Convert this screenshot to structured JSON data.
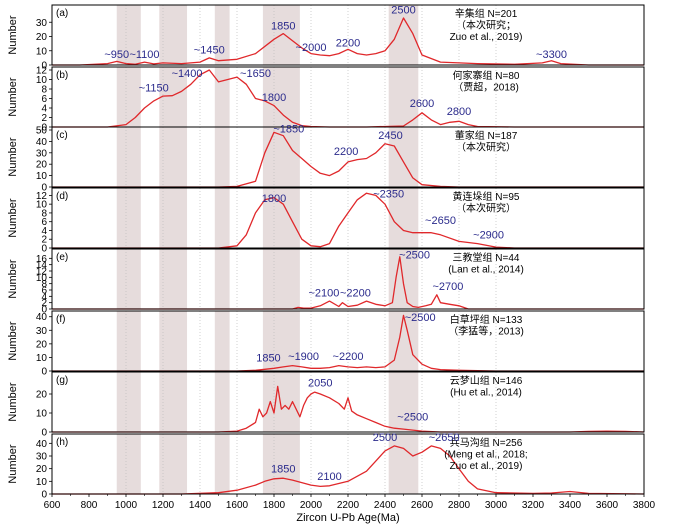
{
  "chart_data": {
    "type": "line",
    "xlabel": "Zircon U-Pb Age(Ma)",
    "ylabel": "Number",
    "xlim": [
      600,
      3800
    ],
    "xticks": [
      600,
      800,
      1000,
      1200,
      1400,
      1600,
      1800,
      2000,
      2200,
      2400,
      2600,
      2800,
      3000,
      3200,
      3400,
      3600,
      3800
    ],
    "colors": {
      "curve": "#e0282b",
      "peak_label": "#2b2b8c",
      "shade": "#e6dcdc",
      "gridline": "#bdbdbd"
    },
    "shaded_bands": [
      [
        950,
        1080
      ],
      [
        1180,
        1330
      ],
      [
        1480,
        1560
      ],
      [
        1740,
        1940
      ],
      [
        2420,
        2580
      ]
    ],
    "dotted_gridlines": [
      1000,
      1200,
      1400,
      1600,
      1800,
      2000,
      2200,
      2400,
      2600,
      2800,
      3000
    ],
    "panels": [
      {
        "tag": "(a)",
        "title_lines": [
          "辛集组 N=201",
          "（本次研究；",
          "Zuo et al., 2019)"
        ],
        "ylim": [
          0,
          40
        ],
        "yticks": [
          0,
          10,
          20,
          30
        ],
        "x": [
          600,
          750,
          900,
          950,
          1000,
          1050,
          1100,
          1150,
          1200,
          1300,
          1400,
          1450,
          1500,
          1600,
          1700,
          1800,
          1850,
          1900,
          1950,
          2000,
          2050,
          2100,
          2150,
          2200,
          2250,
          2300,
          2350,
          2400,
          2450,
          2500,
          2550,
          2600,
          2700,
          2900,
          3100,
          3250,
          3300,
          3350,
          3500,
          3800
        ],
        "y": [
          0,
          0,
          1,
          2.5,
          1,
          0.5,
          2,
          0.8,
          1.5,
          1,
          2,
          5,
          3,
          4,
          8,
          18,
          22,
          17,
          12,
          8,
          7,
          6.5,
          8,
          11,
          8,
          7,
          8,
          10,
          18,
          33,
          22,
          7,
          2,
          1,
          0.5,
          1.5,
          3,
          1,
          0,
          0
        ],
        "peaks": [
          {
            "label": "~950",
            "x": 950,
            "y": 5
          },
          {
            "label": "~1100",
            "x": 1100,
            "y": 5
          },
          {
            "label": "~1450",
            "x": 1450,
            "y": 8
          },
          {
            "label": "1850",
            "x": 1850,
            "y": 25
          },
          {
            "label": "~2000",
            "x": 2000,
            "y": 10
          },
          {
            "label": "2200",
            "x": 2200,
            "y": 13
          },
          {
            "label": "2500",
            "x": 2500,
            "y": 36
          },
          {
            "label": "~3300",
            "x": 3300,
            "y": 5
          }
        ]
      },
      {
        "tag": "(b)",
        "title_lines": [
          "何家寨组 N=80",
          "（贾超，2018)"
        ],
        "ylim": [
          0,
          12
        ],
        "yticks": [
          0,
          2,
          4,
          6,
          8,
          10,
          12
        ],
        "x": [
          600,
          900,
          1000,
          1050,
          1100,
          1150,
          1200,
          1250,
          1300,
          1350,
          1400,
          1450,
          1500,
          1550,
          1600,
          1650,
          1700,
          1750,
          1800,
          1850,
          1900,
          1950,
          2000,
          2100,
          2300,
          2500,
          2550,
          2600,
          2650,
          2700,
          2750,
          2800,
          2850,
          2900,
          3100,
          3800
        ],
        "y": [
          0,
          0,
          0.5,
          2,
          4,
          5.5,
          6.5,
          6.6,
          7.5,
          9,
          11,
          12,
          9.5,
          10,
          10.5,
          9,
          6,
          5.5,
          4.5,
          2.5,
          1,
          0.3,
          0.1,
          0,
          0,
          0.2,
          1.5,
          3,
          1.5,
          0.5,
          1,
          1.2,
          0.5,
          0.1,
          0,
          0
        ],
        "peaks": [
          {
            "label": "~1150",
            "x": 1150,
            "y": 7.5
          },
          {
            "label": "~1400",
            "x": 1330,
            "y": 10.5
          },
          {
            "label": "~1650",
            "x": 1700,
            "y": 10.5
          },
          {
            "label": "1800",
            "x": 1800,
            "y": 5.5
          },
          {
            "label": "2600",
            "x": 2600,
            "y": 4.2
          },
          {
            "label": "2800",
            "x": 2800,
            "y": 2.5
          }
        ]
      },
      {
        "tag": "(c)",
        "title_lines": [
          "董家组 N=187",
          "（本次研究）"
        ],
        "ylim": [
          0,
          50
        ],
        "yticks": [
          0,
          10,
          20,
          30,
          40,
          50
        ],
        "x": [
          600,
          1500,
          1600,
          1700,
          1750,
          1800,
          1850,
          1900,
          1950,
          2000,
          2050,
          2100,
          2150,
          2200,
          2250,
          2300,
          2350,
          2400,
          2450,
          2500,
          2550,
          2600,
          2700,
          2800,
          3000,
          3800
        ],
        "y": [
          0,
          0,
          0.5,
          5,
          30,
          48,
          45,
          32,
          25,
          18,
          12,
          10,
          14,
          22,
          24,
          25,
          30,
          38,
          36,
          22,
          8,
          2,
          0.5,
          0,
          0,
          0
        ],
        "peaks": [
          {
            "label": "~1850",
            "x": 1880,
            "y": 48
          },
          {
            "label": "2200",
            "x": 2190,
            "y": 28
          },
          {
            "label": "2450",
            "x": 2430,
            "y": 42
          }
        ]
      },
      {
        "tag": "(d)",
        "title_lines": [
          "黄连垛组 N=95",
          "（本次研究）"
        ],
        "ylim": [
          0,
          13
        ],
        "yticks": [
          0,
          2,
          4,
          6,
          8,
          10,
          12
        ],
        "x": [
          600,
          1500,
          1600,
          1650,
          1700,
          1750,
          1800,
          1850,
          1900,
          1950,
          2000,
          2050,
          2100,
          2150,
          2200,
          2250,
          2300,
          2350,
          2400,
          2450,
          2500,
          2550,
          2600,
          2650,
          2700,
          2800,
          2900,
          3000,
          3100,
          3800
        ],
        "y": [
          0,
          0,
          0.5,
          3,
          8,
          11,
          11.5,
          10,
          6,
          2,
          0.5,
          0.3,
          1,
          5,
          8,
          11,
          12.5,
          12,
          10,
          6,
          4,
          3.5,
          3.5,
          3.5,
          3,
          1.5,
          1,
          0.2,
          0,
          0
        ],
        "peaks": [
          {
            "label": "1800",
            "x": 1800,
            "y": 10.5
          },
          {
            "label": "~2350",
            "x": 2420,
            "y": 11.5
          },
          {
            "label": "~2650",
            "x": 2700,
            "y": 5.5
          },
          {
            "label": "~2900",
            "x": 2960,
            "y": 2.2
          }
        ]
      },
      {
        "tag": "(e)",
        "title_lines": [
          "三教堂组 N=44",
          "(Lan et al., 2014)"
        ],
        "ylim": [
          0,
          18
        ],
        "yticks": [
          0,
          2,
          4,
          6,
          8,
          10,
          12,
          14,
          16
        ],
        "x": [
          600,
          1900,
          1930,
          1960,
          2000,
          2050,
          2100,
          2150,
          2170,
          2200,
          2250,
          2300,
          2350,
          2400,
          2440,
          2460,
          2480,
          2500,
          2520,
          2550,
          2580,
          2620,
          2650,
          2680,
          2700,
          2750,
          2800,
          2850,
          3800
        ],
        "y": [
          0,
          0,
          0.5,
          0.3,
          0.3,
          1,
          2.5,
          0.8,
          2,
          0.8,
          1.2,
          2.5,
          1.5,
          1,
          2,
          10,
          16.5,
          8,
          2,
          0.8,
          0.5,
          1,
          1.5,
          4.5,
          2,
          1.5,
          1,
          0,
          0
        ],
        "peaks": [
          {
            "label": "~2100",
            "x": 2070,
            "y": 4
          },
          {
            "label": "~2200",
            "x": 2240,
            "y": 4
          },
          {
            "label": "~2500",
            "x": 2560,
            "y": 16
          },
          {
            "label": "~2700",
            "x": 2740,
            "y": 6
          }
        ]
      },
      {
        "tag": "(f)",
        "title_lines": [
          "白草坪组 N=133",
          "（李猛等，2013)"
        ],
        "ylim": [
          0,
          42
        ],
        "yticks": [
          0,
          10,
          20,
          30,
          40
        ],
        "x": [
          600,
          1600,
          1700,
          1800,
          1850,
          1900,
          1950,
          2000,
          2050,
          2100,
          2150,
          2200,
          2250,
          2300,
          2350,
          2400,
          2450,
          2480,
          2500,
          2520,
          2550,
          2600,
          2650,
          2700,
          2800,
          3000,
          3800
        ],
        "y": [
          0,
          0,
          0.5,
          2,
          3,
          4,
          3,
          2,
          2,
          2.5,
          4,
          3,
          2.5,
          3,
          2.5,
          3,
          8,
          25,
          41,
          30,
          12,
          5,
          2,
          1,
          0.5,
          0,
          0
        ],
        "peaks": [
          {
            "label": "1850",
            "x": 1770,
            "y": 7
          },
          {
            "label": "~1900",
            "x": 1960,
            "y": 8
          },
          {
            "label": "~2200",
            "x": 2200,
            "y": 8
          },
          {
            "label": "~2500",
            "x": 2590,
            "y": 37
          }
        ]
      },
      {
        "tag": "(g)",
        "title_lines": [
          "云梦山组 N=146",
          "(Hu et al., 2014)"
        ],
        "ylim": [
          0,
          30
        ],
        "yticks": [
          0,
          10,
          20
        ],
        "x": [
          600,
          1500,
          1600,
          1650,
          1700,
          1720,
          1740,
          1760,
          1780,
          1800,
          1820,
          1840,
          1860,
          1880,
          1900,
          1940,
          1960,
          1980,
          2000,
          2020,
          2050,
          2100,
          2150,
          2180,
          2200,
          2220,
          2250,
          2300,
          2350,
          2400,
          2450,
          2500,
          2550,
          2600,
          2700,
          3400,
          3500,
          3600,
          3700,
          3800
        ],
        "y": [
          0,
          0,
          0.5,
          2,
          5,
          12,
          8,
          10,
          16,
          10,
          24,
          12,
          14,
          12,
          16,
          8,
          14,
          18,
          20,
          21,
          20,
          18,
          15,
          12,
          18,
          11,
          9,
          7,
          5,
          3,
          2,
          1.5,
          1,
          0.5,
          0,
          0,
          0.3,
          0.5,
          0.3,
          0
        ],
        "peaks": [
          {
            "label": "2050",
            "x": 2050,
            "y": 24
          },
          {
            "label": "~2500",
            "x": 2550,
            "y": 6
          }
        ]
      },
      {
        "tag": "(h)",
        "title_lines": [
          "兵马沟组 N=256",
          "(Meng et al., 2018;",
          "Zuo et al., 2019)"
        ],
        "ylim": [
          0,
          45
        ],
        "yticks": [
          0,
          10,
          20,
          30,
          40
        ],
        "x": [
          600,
          1300,
          1500,
          1600,
          1700,
          1750,
          1800,
          1850,
          1900,
          2000,
          2050,
          2100,
          2200,
          2300,
          2350,
          2400,
          2450,
          2500,
          2550,
          2600,
          2650,
          2700,
          2750,
          2800,
          2850,
          2900,
          3000,
          3200,
          3300,
          3400,
          3500,
          3800
        ],
        "y": [
          0,
          0,
          1,
          3,
          7,
          10,
          12,
          12.5,
          11,
          7,
          6,
          6.5,
          10,
          18,
          26,
          34,
          38,
          36,
          30,
          33,
          38,
          36,
          30,
          20,
          10,
          4,
          1,
          0.5,
          0.8,
          2,
          0.5,
          0
        ],
        "peaks": [
          {
            "label": "1850",
            "x": 1850,
            "y": 17
          },
          {
            "label": "2100",
            "x": 2100,
            "y": 11
          },
          {
            "label": "2500",
            "x": 2400,
            "y": 42
          },
          {
            "label": "~2650",
            "x": 2720,
            "y": 42
          }
        ]
      }
    ]
  }
}
